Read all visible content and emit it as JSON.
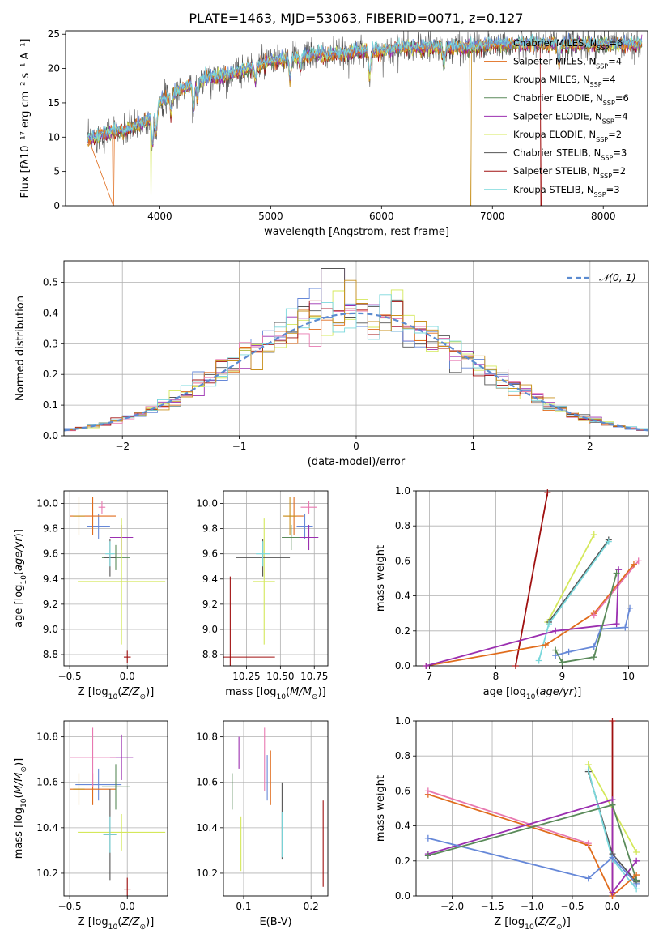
{
  "title": "PLATE=1463, MJD=53063, FIBERID=0071, z=0.127",
  "colors": {
    "chabrier_miles": "#6688d8",
    "salpeter_miles": "#e06c1c",
    "kroupa_miles": "#c8901c",
    "chabrier_elodie": "#5a8a5a",
    "salpeter_elodie": "#9b2fb0",
    "kroupa_elodie": "#d4e85a",
    "chabrier_stelib": "#555555",
    "salpeter_stelib": "#a01010",
    "kroupa_stelib": "#7ad8dc",
    "pink": "#e878b0",
    "gaussian": "#5b8bd0"
  },
  "chart_data": [
    {
      "id": "spectrum",
      "type": "line",
      "xlabel": "wavelength [Angstrom, rest frame]",
      "ylabel": "Flux [fλ10⁻¹⁷ erg cm⁻² s⁻¹ A⁻¹]",
      "xlim": [
        3150,
        8400
      ],
      "ylim": [
        0,
        25.5
      ],
      "xticks": [
        4000,
        5000,
        6000,
        7000,
        8000
      ],
      "yticks": [
        0,
        5,
        10,
        15,
        20,
        25
      ],
      "legend_position": "top-right",
      "legend": [
        "Chabrier MILES, N_SSP=6",
        "Salpeter MILES, N_SSP=4",
        "Kroupa MILES, N_SSP=4",
        "Chabrier ELODIE, N_SSP=6",
        "Salpeter ELODIE, N_SSP=4",
        "Kroupa ELODIE, N_SSP=2",
        "Chabrier STELIB, N_SSP=3",
        "Salpeter STELIB, N_SSP=2",
        "Kroupa STELIB, N_SSP=3"
      ],
      "continuum": {
        "x": [
          3350,
          3500,
          3700,
          3900,
          4000,
          4200,
          4400,
          4600,
          4800,
          5000,
          5200,
          5400,
          5600,
          5800,
          6000,
          6200,
          6400,
          6600,
          6800,
          7000,
          7200,
          7400,
          7600,
          7800,
          8000,
          8200,
          8350
        ],
        "y": [
          9.5,
          10.5,
          11,
          12.5,
          15,
          17,
          18.5,
          19,
          20,
          21,
          21.5,
          22,
          22,
          22.5,
          22.5,
          23,
          23,
          23,
          23,
          23.5,
          23.5,
          23.5,
          23.5,
          23.5,
          23.5,
          23.5,
          23.5
        ]
      },
      "absorption": [
        {
          "x": 3934,
          "depth": 4.5
        },
        {
          "x": 3968,
          "depth": 3.5
        },
        {
          "x": 4102,
          "depth": 2.5
        },
        {
          "x": 4304,
          "depth": 4
        },
        {
          "x": 4340,
          "depth": 2.5
        },
        {
          "x": 4861,
          "depth": 2
        },
        {
          "x": 5175,
          "depth": 3
        },
        {
          "x": 5270,
          "depth": 1.5
        },
        {
          "x": 5893,
          "depth": 3.5
        },
        {
          "x": 6563,
          "depth": 2.5
        },
        {
          "x": 7600,
          "depth": 3
        }
      ],
      "dropouts": [
        {
          "x": 3580,
          "series": "salpeter_miles"
        },
        {
          "x": 3920,
          "series": "kroupa_elodie"
        },
        {
          "x": 6805,
          "series": "kroupa_miles"
        },
        {
          "x": 7440,
          "series": "salpeter_stelib"
        }
      ]
    },
    {
      "id": "residuals",
      "type": "histogram",
      "xlabel": "(data-model)/error",
      "ylabel": "Normed distribution",
      "xlim": [
        -2.5,
        2.5
      ],
      "ylim": [
        0,
        0.57
      ],
      "xticks": [
        -2,
        -1,
        0,
        1,
        2
      ],
      "yticks": [
        0.0,
        0.1,
        0.2,
        0.3,
        0.4,
        0.5
      ],
      "bin_width": 0.1,
      "legend": [
        "𝒩(0, 1)"
      ],
      "legend_position": "top-right",
      "gaussian": {
        "mean": 0,
        "sigma": 1
      }
    },
    {
      "id": "z-age",
      "type": "errorbar",
      "xlabel": "Z [log₁₀(Z/Z⊙)]",
      "ylabel": "age  [log₁₀(age/yr)]",
      "xlim": [
        -0.55,
        0.35
      ],
      "ylim": [
        8.71,
        10.1
      ],
      "xticks": [
        -0.5,
        0.0
      ],
      "yticks": [
        8.8,
        9.0,
        9.2,
        9.4,
        9.6,
        9.8,
        10.0
      ],
      "points": [
        {
          "series": "chabrier_miles",
          "x": -0.25,
          "y": 9.82,
          "xerr": 0.1,
          "yerr": 0.1
        },
        {
          "series": "salpeter_miles",
          "x": -0.3,
          "y": 9.9,
          "xerr": 0.2,
          "yerr": 0.15
        },
        {
          "series": "kroupa_miles",
          "x": -0.42,
          "y": 9.9,
          "xerr": 0.05,
          "yerr": 0.15
        },
        {
          "series": "chabrier_elodie",
          "x": -0.1,
          "y": 9.57,
          "xerr": 0.12,
          "yerr": 0.1
        },
        {
          "series": "salpeter_elodie",
          "x": -0.05,
          "y": 9.73,
          "xerr": 0.1,
          "yerr": 0.1
        },
        {
          "series": "kroupa_elodie",
          "x": -0.05,
          "y": 9.38,
          "xerr": 0.38,
          "yerr": 0.5
        },
        {
          "series": "chabrier_stelib",
          "x": -0.15,
          "y": 9.57,
          "xerr": 0.05,
          "yerr": 0.15
        },
        {
          "series": "salpeter_stelib",
          "x": 0.0,
          "y": 8.78,
          "xerr": 0.03,
          "yerr": 0.05
        },
        {
          "series": "kroupa_stelib",
          "x": -0.15,
          "y": 9.6,
          "xerr": 0.04,
          "yerr": 0.1
        },
        {
          "series": "pink",
          "x": -0.22,
          "y": 9.97,
          "xerr": 0.03,
          "yerr": 0.05
        }
      ]
    },
    {
      "id": "mass-age",
      "type": "errorbar",
      "xlabel": "mass [log₁₀(M/M⊙)]",
      "ylabel": "",
      "xlim": [
        10.08,
        10.85
      ],
      "ylim": [
        8.71,
        10.1
      ],
      "xticks": [
        10.25,
        10.5,
        10.75
      ],
      "yticks": [
        8.8,
        9.0,
        9.2,
        9.4,
        9.6,
        9.8,
        10.0
      ],
      "points": [
        {
          "series": "chabrier_miles",
          "x": 10.68,
          "y": 9.82,
          "xerr": 0.06,
          "yerr": 0.1
        },
        {
          "series": "salpeter_miles",
          "x": 10.6,
          "y": 9.9,
          "xerr": 0.07,
          "yerr": 0.15
        },
        {
          "series": "kroupa_miles",
          "x": 10.57,
          "y": 9.9,
          "xerr": 0.05,
          "yerr": 0.15
        },
        {
          "series": "chabrier_elodie",
          "x": 10.58,
          "y": 9.73,
          "xerr": 0.07,
          "yerr": 0.1
        },
        {
          "series": "salpeter_elodie",
          "x": 10.71,
          "y": 9.73,
          "xerr": 0.07,
          "yerr": 0.1
        },
        {
          "series": "kroupa_elodie",
          "x": 10.38,
          "y": 9.38,
          "xerr": 0.08,
          "yerr": 0.5
        },
        {
          "series": "chabrier_stelib",
          "x": 10.37,
          "y": 9.57,
          "xerr": 0.2,
          "yerr": 0.15
        },
        {
          "series": "salpeter_stelib",
          "x": 10.13,
          "y": 8.78,
          "xerr": 0.33,
          "yerr": 0.64
        },
        {
          "series": "kroupa_stelib",
          "x": 10.37,
          "y": 9.6,
          "xerr": 0.05,
          "yerr": 0.1
        },
        {
          "series": "pink",
          "x": 10.71,
          "y": 9.97,
          "xerr": 0.06,
          "yerr": 0.05
        }
      ]
    },
    {
      "id": "age-weight",
      "type": "line",
      "xlabel": "age  [log₁₀(age/yr)]",
      "ylabel": "mass weight",
      "xlim": [
        6.8,
        10.3
      ],
      "ylim": [
        0,
        1
      ],
      "xticks": [
        7,
        8,
        9,
        10
      ],
      "yticks": [
        0.0,
        0.2,
        0.4,
        0.6,
        0.8,
        1.0
      ],
      "series": [
        {
          "color": "salpeter_stelib",
          "x": [
            8.3,
            8.78
          ],
          "y": [
            0.0,
            0.99
          ]
        },
        {
          "color": "kroupa_elodie",
          "x": [
            8.78,
            9.48
          ],
          "y": [
            0.25,
            0.75
          ]
        },
        {
          "color": "chabrier_stelib",
          "x": [
            8.8,
            9.7
          ],
          "y": [
            0.25,
            0.72
          ]
        },
        {
          "color": "kroupa_stelib",
          "x": [
            8.65,
            8.8,
            9.7
          ],
          "y": [
            0.03,
            0.24,
            0.71
          ]
        },
        {
          "color": "salpeter_miles",
          "x": [
            6.95,
            8.75,
            9.48,
            10.08
          ],
          "y": [
            0.0,
            0.12,
            0.3,
            0.58
          ]
        },
        {
          "color": "pink",
          "x": [
            9.48,
            10.15
          ],
          "y": [
            0.29,
            0.6
          ]
        },
        {
          "color": "salpeter_elodie",
          "x": [
            6.95,
            8.9,
            9.82,
            9.85
          ],
          "y": [
            0.0,
            0.2,
            0.24,
            0.55
          ]
        },
        {
          "color": "chabrier_miles",
          "x": [
            8.9,
            9.1,
            9.48,
            9.58,
            9.95,
            10.02
          ],
          "y": [
            0.06,
            0.08,
            0.11,
            0.21,
            0.22,
            0.33
          ]
        },
        {
          "color": "chabrier_elodie",
          "x": [
            8.9,
            9.0,
            9.48,
            9.82
          ],
          "y": [
            0.09,
            0.02,
            0.05,
            0.53
          ]
        }
      ]
    },
    {
      "id": "z-mass",
      "type": "errorbar",
      "xlabel": "Z [log₁₀(Z/Z⊙)]",
      "ylabel": "mass [log₁₀(M/M⊙)]",
      "xlim": [
        -0.55,
        0.35
      ],
      "ylim": [
        10.1,
        10.87
      ],
      "xticks": [
        -0.5,
        0.0
      ],
      "yticks": [
        10.2,
        10.4,
        10.6,
        10.8
      ],
      "points": [
        {
          "series": "chabrier_miles",
          "x": -0.25,
          "y": 10.59,
          "xerr": 0.2,
          "yerr": 0.07
        },
        {
          "series": "salpeter_miles",
          "x": -0.3,
          "y": 10.57,
          "xerr": 0.2,
          "yerr": 0.07
        },
        {
          "series": "kroupa_miles",
          "x": -0.42,
          "y": 10.57,
          "xerr": 0.05,
          "yerr": 0.07
        },
        {
          "series": "chabrier_elodie",
          "x": -0.1,
          "y": 10.58,
          "xerr": 0.12,
          "yerr": 0.1
        },
        {
          "series": "salpeter_elodie",
          "x": -0.05,
          "y": 10.71,
          "xerr": 0.1,
          "yerr": 0.1
        },
        {
          "series": "kroupa_elodie",
          "x": -0.05,
          "y": 10.38,
          "xerr": 0.38,
          "yerr": 0.08
        },
        {
          "series": "chabrier_stelib",
          "x": -0.15,
          "y": 10.37,
          "xerr": 0.05,
          "yerr": 0.2
        },
        {
          "series": "salpeter_stelib",
          "x": 0.0,
          "y": 10.13,
          "xerr": 0.03,
          "yerr": 0.05
        },
        {
          "series": "kroupa_stelib",
          "x": -0.15,
          "y": 10.37,
          "xerr": 0.06,
          "yerr": 0.08
        },
        {
          "series": "pink",
          "x": -0.3,
          "y": 10.71,
          "xerr": 0.2,
          "yerr": 0.13
        }
      ]
    },
    {
      "id": "ebv-mass",
      "type": "errorbar",
      "xlabel": "E(B-V)",
      "ylabel": "",
      "xlim": [
        0.07,
        0.225
      ],
      "ylim": [
        10.1,
        10.87
      ],
      "xticks": [
        0.1,
        0.2
      ],
      "yticks": [
        10.2,
        10.4,
        10.6,
        10.8
      ],
      "points": [
        {
          "series": "chabrier_miles",
          "x": 0.135,
          "y": 10.62,
          "xerr": 0,
          "yerr": 0.1
        },
        {
          "series": "salpeter_miles",
          "x": 0.14,
          "y": 10.62,
          "xerr": 0,
          "yerr": 0.12
        },
        {
          "series": "chabrier_elodie",
          "x": 0.083,
          "y": 10.56,
          "xerr": 0,
          "yerr": 0.08
        },
        {
          "series": "salpeter_elodie",
          "x": 0.093,
          "y": 10.73,
          "xerr": 0,
          "yerr": 0.07
        },
        {
          "series": "kroupa_elodie",
          "x": 0.096,
          "y": 10.33,
          "xerr": 0,
          "yerr": 0.12
        },
        {
          "series": "chabrier_stelib",
          "x": 0.157,
          "y": 10.43,
          "xerr": 0,
          "yerr": 0.17
        },
        {
          "series": "salpeter_stelib",
          "x": 0.218,
          "y": 10.33,
          "xerr": 0,
          "yerr": 0.19
        },
        {
          "series": "kroupa_stelib",
          "x": 0.157,
          "y": 10.37,
          "xerr": 0,
          "yerr": 0.1
        },
        {
          "series": "pink",
          "x": 0.131,
          "y": 10.7,
          "xerr": 0,
          "yerr": 0.14
        }
      ]
    },
    {
      "id": "z-weight",
      "type": "line",
      "xlabel": "Z [log₁₀(Z/Z⊙)]",
      "ylabel": "mass weight",
      "xlim": [
        -2.45,
        0.45
      ],
      "ylim": [
        0,
        1
      ],
      "xticks": [
        -2.0,
        -1.5,
        -1.0,
        -0.5,
        0.0
      ],
      "yticks": [
        0.0,
        0.2,
        0.4,
        0.6,
        0.8,
        1.0
      ],
      "series": [
        {
          "color": "salpeter_stelib",
          "x": [
            0.0,
            0.0
          ],
          "y": [
            0.0,
            1.0
          ]
        },
        {
          "color": "kroupa_elodie",
          "x": [
            -0.3,
            0.3
          ],
          "y": [
            0.75,
            0.25
          ]
        },
        {
          "color": "chabrier_stelib",
          "x": [
            -0.3,
            0.0,
            0.3
          ],
          "y": [
            0.71,
            0.24,
            0.08
          ]
        },
        {
          "color": "kroupa_stelib",
          "x": [
            -0.3,
            0.0,
            0.3
          ],
          "y": [
            0.72,
            0.21,
            0.04
          ]
        },
        {
          "color": "salpeter_miles",
          "x": [
            -2.3,
            -0.3,
            0.0,
            0.3
          ],
          "y": [
            0.58,
            0.29,
            0.0,
            0.12
          ]
        },
        {
          "color": "pink",
          "x": [
            -2.3,
            -0.3
          ],
          "y": [
            0.6,
            0.3
          ]
        },
        {
          "color": "salpeter_elodie",
          "x": [
            -2.3,
            0.0,
            0.0,
            0.3
          ],
          "y": [
            0.24,
            0.55,
            0.02,
            0.2
          ]
        },
        {
          "color": "chabrier_miles",
          "x": [
            -2.3,
            -0.3,
            0.0,
            0.3
          ],
          "y": [
            0.33,
            0.1,
            0.22,
            0.07
          ]
        },
        {
          "color": "chabrier_elodie",
          "x": [
            -2.3,
            0.0,
            0.3
          ],
          "y": [
            0.23,
            0.52,
            0.09
          ]
        }
      ]
    }
  ]
}
